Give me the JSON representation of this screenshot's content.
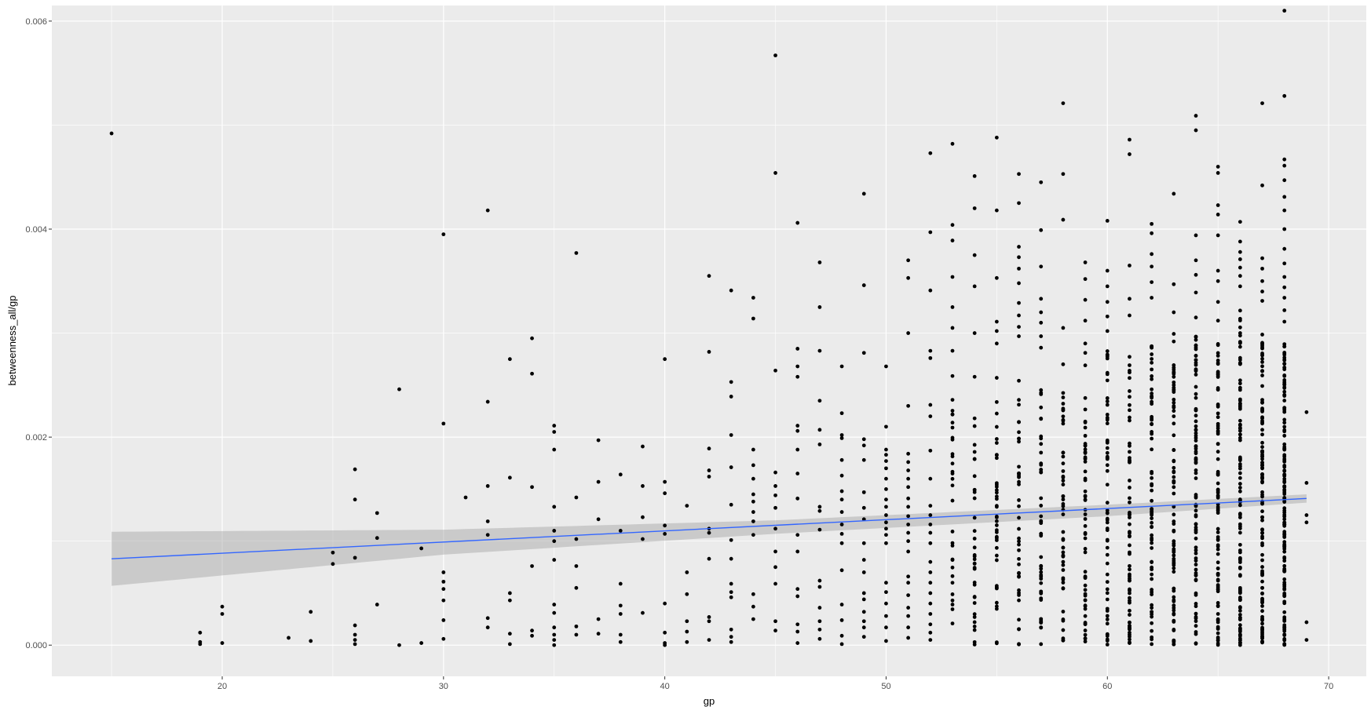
{
  "chart_data": {
    "type": "scatter",
    "title": "",
    "xlabel": "gp",
    "ylabel": "betweenness_all/gp",
    "xlim": [
      12.3,
      71.7
    ],
    "ylim": [
      -0.0003,
      0.00615
    ],
    "x_ticks": [
      {
        "value": 20,
        "label": "20"
      },
      {
        "value": 30,
        "label": "30"
      },
      {
        "value": 40,
        "label": "40"
      },
      {
        "value": 50,
        "label": "50"
      },
      {
        "value": 60,
        "label": "60"
      },
      {
        "value": 70,
        "label": "70"
      }
    ],
    "y_ticks": [
      {
        "value": 0,
        "label": "0.000"
      },
      {
        "value": 0.002,
        "label": "0.002"
      },
      {
        "value": 0.004,
        "label": "0.004"
      },
      {
        "value": 0.006,
        "label": "0.006"
      }
    ],
    "grid": true,
    "smooth": {
      "method": "linear",
      "x_range": [
        15,
        69
      ],
      "fit": [
        [
          15,
          0.00083
        ],
        [
          69,
          0.00141
        ]
      ],
      "band": {
        "lower": [
          [
            15,
            0.00057
          ],
          [
            30,
            0.00087
          ],
          [
            45,
            0.00107
          ],
          [
            60,
            0.00124
          ],
          [
            69,
            0.00137
          ]
        ],
        "upper": [
          [
            15,
            0.00109
          ],
          [
            30,
            0.00111
          ],
          [
            45,
            0.0012
          ],
          [
            60,
            0.00135
          ],
          [
            69,
            0.00145
          ]
        ]
      }
    },
    "colors": {
      "panel": "#EBEBEB",
      "grid": "#FFFFFF",
      "points": "#000000",
      "fit_line": "#3366FF",
      "band": "#999999"
    },
    "points": [
      [
        15,
        0.00492
      ],
      [
        19,
        0.00012
      ],
      [
        19,
        3e-05
      ],
      [
        19,
        1e-05
      ],
      [
        20,
        0.00037
      ],
      [
        20,
        0.0003
      ],
      [
        20,
        2e-05
      ],
      [
        23,
        7e-05
      ],
      [
        24,
        0.00032
      ],
      [
        24,
        4e-05
      ],
      [
        25,
        0.00089
      ],
      [
        25,
        0.00078
      ],
      [
        26,
        0.00169
      ],
      [
        26,
        0.0014
      ],
      [
        26,
        0.00084
      ],
      [
        26,
        0.00019
      ],
      [
        26,
        0.0001
      ],
      [
        26,
        5e-05
      ],
      [
        26,
        1e-05
      ],
      [
        27,
        0.00127
      ],
      [
        27,
        0.00103
      ],
      [
        27,
        0.00039
      ],
      [
        28,
        0.00246
      ],
      [
        28,
        0.0
      ],
      [
        29,
        0.00093
      ],
      [
        29,
        2e-05
      ],
      [
        30,
        0.00395
      ],
      [
        30,
        0.00213
      ],
      [
        30,
        0.0007
      ],
      [
        30,
        0.00061
      ],
      [
        30,
        0.00054
      ],
      [
        30,
        0.00043
      ],
      [
        30,
        0.00024
      ],
      [
        30,
        6e-05
      ],
      [
        31,
        0.00142
      ],
      [
        32,
        0.00418
      ],
      [
        32,
        0.00234
      ],
      [
        32,
        0.00153
      ],
      [
        32,
        0.00119
      ],
      [
        32,
        0.00106
      ],
      [
        32,
        0.00026
      ],
      [
        32,
        0.00017
      ],
      [
        33,
        0.00275
      ],
      [
        33,
        0.00161
      ],
      [
        33,
        0.0005
      ],
      [
        33,
        0.00043
      ],
      [
        33,
        0.00011
      ],
      [
        33,
        1e-05
      ],
      [
        34,
        0.00295
      ],
      [
        34,
        0.00261
      ],
      [
        34,
        0.00152
      ],
      [
        34,
        0.00076
      ],
      [
        34,
        0.00014
      ],
      [
        34,
        9e-05
      ],
      [
        35,
        0.00211
      ],
      [
        35,
        0.00205
      ],
      [
        35,
        0.00188
      ],
      [
        35,
        0.00133
      ],
      [
        35,
        0.0011
      ],
      [
        35,
        0.001
      ],
      [
        35,
        0.00082
      ],
      [
        35,
        0.00039
      ],
      [
        35,
        0.00031
      ],
      [
        35,
        0.00017
      ],
      [
        35,
        0.0001
      ],
      [
        35,
        5e-05
      ],
      [
        35,
        0.0
      ],
      [
        36,
        0.00377
      ],
      [
        36,
        0.00142
      ],
      [
        36,
        0.00102
      ],
      [
        36,
        0.00076
      ],
      [
        36,
        0.00055
      ],
      [
        36,
        0.00018
      ],
      [
        36,
        0.0001
      ],
      [
        37,
        0.00197
      ],
      [
        37,
        0.00157
      ],
      [
        37,
        0.00121
      ],
      [
        37,
        0.00025
      ],
      [
        37,
        0.00011
      ],
      [
        38,
        0.00164
      ],
      [
        38,
        0.0011
      ],
      [
        38,
        0.00059
      ],
      [
        38,
        0.00038
      ],
      [
        38,
        0.0003
      ],
      [
        38,
        0.0001
      ],
      [
        38,
        3e-05
      ],
      [
        39,
        0.00191
      ],
      [
        39,
        0.00153
      ],
      [
        39,
        0.00123
      ],
      [
        39,
        0.00102
      ],
      [
        39,
        0.00031
      ],
      [
        40,
        0.00275
      ],
      [
        40,
        0.00157
      ],
      [
        40,
        0.00146
      ],
      [
        40,
        0.00115
      ],
      [
        40,
        0.00107
      ],
      [
        40,
        0.0004
      ],
      [
        40,
        0.00012
      ],
      [
        40,
        2e-05
      ],
      [
        40,
        0.0
      ],
      [
        41,
        0.00134
      ],
      [
        41,
        0.0007
      ],
      [
        41,
        0.00049
      ],
      [
        41,
        0.00023
      ],
      [
        41,
        0.00013
      ],
      [
        41,
        3e-05
      ],
      [
        42,
        0.00355
      ],
      [
        42,
        0.00282
      ],
      [
        42,
        0.00189
      ],
      [
        42,
        0.00168
      ],
      [
        42,
        0.00162
      ],
      [
        42,
        0.00112
      ],
      [
        42,
        0.00108
      ],
      [
        42,
        0.00083
      ],
      [
        42,
        0.00027
      ],
      [
        42,
        0.00023
      ],
      [
        42,
        5e-05
      ],
      [
        43,
        0.00341
      ],
      [
        43,
        0.00253
      ],
      [
        43,
        0.00239
      ],
      [
        43,
        0.00202
      ],
      [
        43,
        0.00171
      ],
      [
        43,
        0.00135
      ],
      [
        43,
        0.00101
      ],
      [
        43,
        0.00083
      ],
      [
        43,
        0.00059
      ],
      [
        43,
        0.00051
      ],
      [
        43,
        0.00046
      ],
      [
        43,
        0.00015
      ],
      [
        43,
        8e-05
      ],
      [
        43,
        3e-05
      ],
      [
        44,
        0.00334
      ],
      [
        44,
        0.00314
      ],
      [
        44,
        0.00188
      ],
      [
        44,
        0.00173
      ],
      [
        44,
        0.0016
      ],
      [
        44,
        0.00145
      ],
      [
        44,
        0.00138
      ],
      [
        44,
        0.00128
      ],
      [
        44,
        0.00119
      ],
      [
        44,
        0.00106
      ],
      [
        44,
        0.00049
      ],
      [
        44,
        0.00037
      ],
      [
        44,
        0.00025
      ],
      [
        45,
        0.00567
      ],
      [
        45,
        0.00454
      ],
      [
        45,
        0.00264
      ],
      [
        45,
        0.00166
      ],
      [
        45,
        0.00153
      ],
      [
        45,
        0.00144
      ],
      [
        45,
        0.00132
      ],
      [
        45,
        0.00112
      ],
      [
        45,
        0.0009
      ],
      [
        45,
        0.00075
      ],
      [
        45,
        0.00059
      ],
      [
        45,
        0.00023
      ],
      [
        45,
        0.00014
      ],
      [
        46,
        0.00406
      ],
      [
        46,
        0.00285
      ],
      [
        46,
        0.00268
      ],
      [
        46,
        0.00258
      ],
      [
        46,
        0.00211
      ],
      [
        46,
        0.00206
      ],
      [
        46,
        0.00188
      ],
      [
        46,
        0.00165
      ],
      [
        46,
        0.00141
      ],
      [
        46,
        0.00106
      ],
      [
        46,
        0.0009
      ],
      [
        46,
        0.00054
      ],
      [
        46,
        0.00047
      ],
      [
        46,
        0.0002
      ],
      [
        46,
        0.00013
      ],
      [
        46,
        2e-05
      ],
      [
        47,
        0.00368
      ],
      [
        47,
        0.00325
      ],
      [
        47,
        0.00283
      ],
      [
        47,
        0.00235
      ],
      [
        47,
        0.00207
      ],
      [
        47,
        0.00193
      ],
      [
        47,
        0.00133
      ],
      [
        47,
        0.00129
      ],
      [
        47,
        0.00111
      ],
      [
        47,
        0.00062
      ],
      [
        47,
        0.00056
      ],
      [
        47,
        0.00036
      ],
      [
        47,
        0.00023
      ],
      [
        47,
        0.00015
      ],
      [
        47,
        6e-05
      ],
      [
        48,
        0.00268
      ],
      [
        48,
        0.00223
      ],
      [
        48,
        0.00202
      ],
      [
        48,
        0.00199
      ],
      [
        48,
        0.00178
      ],
      [
        48,
        0.00163
      ],
      [
        48,
        0.00148
      ],
      [
        48,
        0.0014
      ],
      [
        48,
        0.00128
      ],
      [
        48,
        0.00116
      ],
      [
        48,
        0.00107
      ],
      [
        48,
        0.00098
      ],
      [
        48,
        0.00072
      ],
      [
        48,
        0.00039
      ],
      [
        48,
        0.00024
      ],
      [
        48,
        9e-05
      ],
      [
        48,
        1e-05
      ],
      [
        49,
        0.00434
      ],
      [
        49,
        0.00346
      ],
      [
        49,
        0.00281
      ],
      [
        49,
        0.00198
      ],
      [
        49,
        0.00192
      ],
      [
        49,
        0.00178
      ],
      [
        49,
        0.00147
      ],
      [
        49,
        0.00132
      ],
      [
        49,
        0.00121
      ],
      [
        49,
        0.00098
      ],
      [
        49,
        0.00082
      ],
      [
        49,
        0.0007
      ],
      [
        49,
        0.0005
      ],
      [
        49,
        0.00044
      ],
      [
        49,
        0.00032
      ],
      [
        49,
        0.00023
      ],
      [
        49,
        0.00017
      ],
      [
        49,
        8e-05
      ],
      [
        50,
        0.00268
      ],
      [
        50,
        0.0021
      ],
      [
        50,
        0.00188
      ],
      [
        50,
        0.00183
      ],
      [
        50,
        0.00177
      ],
      [
        50,
        0.0017
      ],
      [
        50,
        0.0016
      ],
      [
        50,
        0.0015
      ],
      [
        50,
        0.0014
      ],
      [
        50,
        0.00133
      ],
      [
        50,
        0.00125
      ],
      [
        50,
        0.00118
      ],
      [
        50,
        0.00112
      ],
      [
        50,
        0.00106
      ],
      [
        50,
        0.00098
      ],
      [
        50,
        0.0006
      ],
      [
        50,
        0.00051
      ],
      [
        50,
        0.0004
      ],
      [
        50,
        0.00028
      ],
      [
        50,
        0.00017
      ],
      [
        50,
        4e-05
      ],
      [
        51,
        0.0037
      ],
      [
        51,
        0.00353
      ],
      [
        51,
        0.003
      ],
      [
        51,
        0.0023
      ],
      [
        51,
        0.00184
      ],
      [
        51,
        0.00176
      ],
      [
        51,
        0.00168
      ],
      [
        51,
        0.0016
      ],
      [
        51,
        0.00152
      ],
      [
        51,
        0.00141
      ],
      [
        51,
        0.00133
      ],
      [
        51,
        0.00124
      ],
      [
        51,
        0.00116
      ],
      [
        51,
        0.00108
      ],
      [
        51,
        0.001
      ],
      [
        51,
        0.0009
      ],
      [
        51,
        0.00066
      ],
      [
        51,
        0.0006
      ],
      [
        51,
        0.00048
      ],
      [
        51,
        0.00036
      ],
      [
        51,
        0.00028
      ],
      [
        51,
        0.00017
      ],
      [
        51,
        7e-05
      ],
      [
        52,
        0.00473
      ],
      [
        52,
        0.00397
      ],
      [
        52,
        0.00341
      ],
      [
        52,
        0.00283
      ],
      [
        52,
        0.00276
      ],
      [
        52,
        0.00231
      ],
      [
        52,
        0.0022
      ],
      [
        52,
        0.00187
      ],
      [
        52,
        0.0016
      ],
      [
        52,
        0.00134
      ],
      [
        52,
        0.00125
      ],
      [
        52,
        0.00116
      ],
      [
        52,
        0.00108
      ],
      [
        52,
        0.00098
      ],
      [
        52,
        0.0008
      ],
      [
        52,
        0.0007
      ],
      [
        52,
        0.0006
      ],
      [
        52,
        0.0005
      ],
      [
        52,
        0.0004
      ],
      [
        52,
        0.0003
      ],
      [
        52,
        0.0002
      ],
      [
        52,
        0.00012
      ],
      [
        52,
        5e-05
      ]
    ],
    "dense_columns": [
      {
        "x": 53,
        "min": 0.0,
        "max": 0.0026,
        "n": 30,
        "outliers": [
          0.00482,
          0.00404,
          0.00389,
          0.00354,
          0.00325,
          0.00305,
          0.00283
        ]
      },
      {
        "x": 54,
        "min": 0.0,
        "max": 0.00225,
        "n": 34,
        "outliers": [
          0.00451,
          0.0042,
          0.00375,
          0.00345,
          0.003,
          0.00258
        ]
      },
      {
        "x": 55,
        "min": 0.0,
        "max": 0.00235,
        "n": 38,
        "outliers": [
          0.00488,
          0.00418,
          0.00353,
          0.00311,
          0.00302,
          0.0029,
          0.00257
        ]
      },
      {
        "x": 56,
        "min": 0.0,
        "max": 0.00255,
        "n": 40,
        "outliers": [
          0.00453,
          0.00425,
          0.00383,
          0.00373,
          0.00362,
          0.00348,
          0.00329,
          0.00317,
          0.00306,
          0.00297
        ]
      },
      {
        "x": 57,
        "min": 0.0,
        "max": 0.0025,
        "n": 46,
        "outliers": [
          0.00445,
          0.00399,
          0.00364,
          0.00333,
          0.0032,
          0.0031,
          0.00297,
          0.00286
        ]
      },
      {
        "x": 58,
        "min": 0.0,
        "max": 0.00245,
        "n": 50,
        "outliers": [
          0.00521,
          0.00453,
          0.00409,
          0.00305,
          0.0027
        ]
      },
      {
        "x": 59,
        "min": 0.0,
        "max": 0.0024,
        "n": 56,
        "outliers": [
          0.00368,
          0.00352,
          0.00332,
          0.00312,
          0.0029,
          0.00281,
          0.00269
        ]
      },
      {
        "x": 60,
        "min": 0.0,
        "max": 0.00285,
        "n": 60,
        "outliers": [
          0.00408,
          0.0036,
          0.00345,
          0.0033,
          0.00316,
          0.00302
        ]
      },
      {
        "x": 61,
        "min": 0.0,
        "max": 0.0029,
        "n": 64,
        "outliers": [
          0.00486,
          0.00472,
          0.00365,
          0.00333,
          0.00317
        ]
      },
      {
        "x": 62,
        "min": 0.0,
        "max": 0.003,
        "n": 70,
        "outliers": [
          0.00405,
          0.00396,
          0.00376,
          0.00364,
          0.00349,
          0.00334
        ]
      },
      {
        "x": 63,
        "min": 0.0,
        "max": 0.003,
        "n": 78,
        "outliers": [
          0.00434,
          0.00347,
          0.0032
        ]
      },
      {
        "x": 64,
        "min": 0.0,
        "max": 0.003,
        "n": 86,
        "outliers": [
          0.00509,
          0.00495,
          0.00394,
          0.0037,
          0.00356,
          0.00339,
          0.00315
        ]
      },
      {
        "x": 65,
        "min": 0.0,
        "max": 0.003,
        "n": 94,
        "outliers": [
          0.0046,
          0.00454,
          0.00423,
          0.00414,
          0.00394,
          0.0036,
          0.0035,
          0.0033,
          0.00312
        ]
      },
      {
        "x": 66,
        "min": 0.0,
        "max": 0.0033,
        "n": 104,
        "outliers": [
          0.00407,
          0.00388,
          0.00378,
          0.00371,
          0.00363,
          0.00355,
          0.00345
        ]
      },
      {
        "x": 67,
        "min": 0.0,
        "max": 0.003,
        "n": 112,
        "outliers": [
          0.00521,
          0.00442,
          0.00372,
          0.00362,
          0.0035,
          0.0034,
          0.00331
        ]
      },
      {
        "x": 68,
        "min": 0.0,
        "max": 0.003,
        "n": 150,
        "outliers": [
          0.0061,
          0.00528,
          0.00467,
          0.00461,
          0.00447,
          0.00431,
          0.00418,
          0.004,
          0.00381,
          0.00367,
          0.00354,
          0.00344,
          0.00334,
          0.00322,
          0.00311
        ]
      }
    ],
    "points_tail": [
      [
        69,
        0.00224
      ],
      [
        69,
        0.00156
      ],
      [
        69,
        0.00125
      ],
      [
        69,
        0.00118
      ],
      [
        69,
        0.00022
      ],
      [
        69,
        5e-05
      ]
    ]
  }
}
